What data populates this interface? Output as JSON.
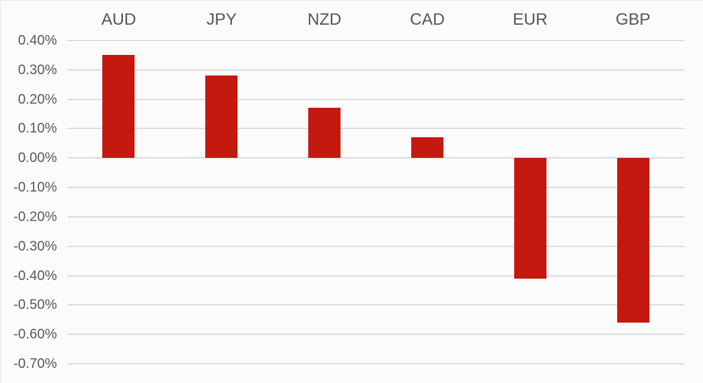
{
  "chart_data": {
    "type": "bar",
    "title": "",
    "categories": [
      "AUD",
      "JPY",
      "NZD",
      "CAD",
      "EUR",
      "GBP"
    ],
    "values": [
      0.35,
      0.28,
      0.17,
      0.07,
      -0.41,
      -0.56
    ],
    "unit": "%",
    "xlabel": "",
    "ylabel": "",
    "ylim": [
      -0.7,
      0.4
    ],
    "y_tick_step": 0.1,
    "y_ticks": [
      "0.40%",
      "0.30%",
      "0.20%",
      "0.10%",
      "0.00%",
      "-0.10%",
      "-0.20%",
      "-0.30%",
      "-0.40%",
      "-0.50%",
      "-0.60%",
      "-0.70%"
    ],
    "y_tick_values": [
      0.4,
      0.3,
      0.2,
      0.1,
      0.0,
      -0.1,
      -0.2,
      -0.3,
      -0.4,
      -0.5,
      -0.6,
      -0.7
    ],
    "grid": true,
    "legend_position": "none",
    "category_label_position": "top",
    "colors": {
      "bar": "#c4190f",
      "grid": "#dcdcdc",
      "tick_label": "#595959",
      "category_label": "#555555",
      "background": "#fbfbfb"
    }
  }
}
